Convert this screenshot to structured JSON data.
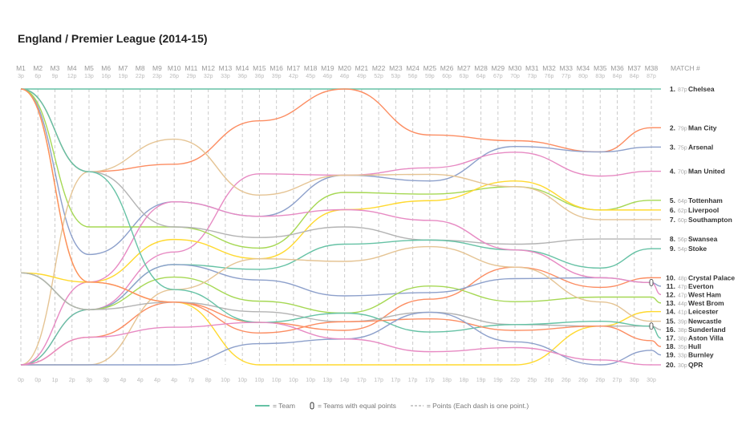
{
  "title": "England / Premier League (2014-15)",
  "legend": {
    "team": "= Team",
    "equal": "= Teams with equal points",
    "points": "= Points (Each dash is one point.)"
  },
  "chart_data": {
    "type": "line",
    "title": "England / Premier League (2014-15)",
    "x_header": "MATCH #",
    "matches": [
      "M1",
      "M2",
      "M3",
      "M4",
      "M5",
      "M6",
      "M7",
      "M8",
      "M9",
      "M10",
      "M11",
      "M12",
      "M13",
      "M14",
      "M15",
      "M16",
      "M17",
      "M18",
      "M19",
      "M20",
      "M21",
      "M22",
      "M23",
      "M24",
      "M25",
      "M26",
      "M27",
      "M28",
      "M29",
      "M30",
      "M31",
      "M32",
      "M33",
      "M34",
      "M35",
      "M36",
      "M37",
      "M38"
    ],
    "max_points": [
      "3p",
      "6p",
      "9p",
      "12p",
      "13p",
      "16p",
      "19p",
      "22p",
      "23p",
      "26p",
      "29p",
      "32p",
      "33p",
      "36p",
      "36p",
      "39p",
      "42p",
      "45p",
      "46p",
      "46p",
      "49p",
      "52p",
      "53p",
      "56p",
      "59p",
      "60p",
      "63p",
      "64p",
      "67p",
      "70p",
      "73p",
      "76p",
      "77p",
      "80p",
      "83p",
      "84p",
      "84p",
      "87p"
    ],
    "min_points": [
      "0p",
      "0p",
      "1p",
      "2p",
      "3p",
      "3p",
      "4p",
      "4p",
      "4p",
      "4p",
      "7p",
      "8p",
      "10p",
      "10p",
      "10p",
      "10p",
      "10p",
      "10p",
      "13p",
      "14p",
      "17p",
      "17p",
      "17p",
      "17p",
      "17p",
      "18p",
      "18p",
      "19p",
      "19p",
      "22p",
      "25p",
      "26p",
      "26p",
      "26p",
      "26p",
      "27p",
      "30p",
      "30p"
    ],
    "sample_matches": [
      1,
      5,
      10,
      15,
      20,
      25,
      30,
      35,
      38
    ],
    "teams": [
      {
        "rank": "1.",
        "points": "87p",
        "name": "Chelsea",
        "color": "#66c2a5",
        "series": [
          3,
          13,
          26,
          36,
          46,
          59,
          70,
          83,
          87
        ]
      },
      {
        "rank": "2.",
        "points": "79p",
        "name": "Man City",
        "color": "#fc8d62",
        "series": [
          3,
          10,
          20,
          33,
          46,
          52,
          61,
          70,
          79
        ]
      },
      {
        "rank": "3.",
        "points": "75p",
        "name": "Arsenal",
        "color": "#8da0cb",
        "series": [
          3,
          7,
          17,
          24,
          36,
          45,
          60,
          70,
          75
        ]
      },
      {
        "rank": "4.",
        "points": "70p",
        "name": "Man United",
        "color": "#e78ac3",
        "series": [
          0,
          5,
          13,
          28,
          36,
          47,
          59,
          65,
          70
        ]
      },
      {
        "rank": "5.",
        "points": "64p",
        "name": "Tottenham",
        "color": "#a6d854",
        "series": [
          3,
          8,
          15,
          21,
          34,
          43,
          53,
          58,
          64
        ]
      },
      {
        "rank": "6.",
        "points": "62p",
        "name": "Liverpool",
        "color": "#ffd92f",
        "series": [
          3,
          6,
          14,
          20,
          32,
          42,
          54,
          58,
          62
        ]
      },
      {
        "rank": "7.",
        "points": "60p",
        "name": "Southampton",
        "color": "#e5c494",
        "series": [
          0,
          10,
          22,
          26,
          36,
          46,
          53,
          56,
          60
        ]
      },
      {
        "rank": "8.",
        "points": "56p",
        "name": "Swansea",
        "color": "#b3b3b3",
        "series": [
          3,
          10,
          15,
          22,
          30,
          36,
          43,
          52,
          56
        ]
      },
      {
        "rank": "9.",
        "points": "54p",
        "name": "Stoke",
        "color": "#66c2a5",
        "series": [
          0,
          5,
          12,
          19,
          28,
          36,
          42,
          46,
          54
        ]
      },
      {
        "rank": "10.",
        "points": "48p",
        "name": "Crystal Palace",
        "color": "#fc8d62",
        "series": [
          0,
          4,
          9,
          14,
          18,
          27,
          39,
          42,
          48
        ]
      },
      {
        "rank": "11.",
        "points": "47p",
        "name": "Everton",
        "color": "#8da0cb",
        "series": [
          1,
          5,
          12,
          18,
          22,
          28,
          37,
          44,
          47
        ]
      },
      {
        "rank": "12.",
        "points": "47p",
        "name": "West Ham",
        "color": "#e78ac3",
        "series": [
          0,
          6,
          17,
          24,
          32,
          39,
          42,
          44,
          47
        ]
      },
      {
        "rank": "13.",
        "points": "44p",
        "name": "West Brom",
        "color": "#a6d854",
        "series": [
          1,
          5,
          11,
          16,
          20,
          29,
          33,
          40,
          44
        ]
      },
      {
        "rank": "14.",
        "points": "41p",
        "name": "Leicester",
        "color": "#ffd92f",
        "series": [
          1,
          6,
          9,
          10,
          14,
          17,
          22,
          34,
          41
        ]
      },
      {
        "rank": "15.",
        "points": "39p",
        "name": "Newcastle",
        "color": "#e5c494",
        "series": [
          0,
          3,
          10,
          20,
          26,
          35,
          39,
          39,
          39
        ]
      },
      {
        "rank": "16.",
        "points": "38p",
        "name": "Sunderland",
        "color": "#b3b3b3",
        "series": [
          1,
          5,
          9,
          15,
          19,
          25,
          29,
          34,
          38
        ]
      },
      {
        "rank": "17.",
        "points": "38p",
        "name": "Aston Villa",
        "color": "#66c2a5",
        "series": [
          3,
          10,
          10,
          14,
          20,
          22,
          29,
          35,
          38
        ]
      },
      {
        "rank": "18.",
        "points": "35p",
        "name": "Hull",
        "color": "#fc8d62",
        "series": [
          3,
          6,
          9,
          13,
          19,
          24,
          28,
          34,
          35
        ]
      },
      {
        "rank": "19.",
        "points": "33p",
        "name": "Burnley",
        "color": "#8da0cb",
        "series": [
          0,
          3,
          4,
          12,
          17,
          25,
          26,
          26,
          33
        ]
      },
      {
        "rank": "20.",
        "points": "30p",
        "name": "QPR",
        "color": "#e78ac3",
        "series": [
          0,
          4,
          7,
          14,
          17,
          19,
          25,
          27,
          30
        ]
      }
    ]
  }
}
